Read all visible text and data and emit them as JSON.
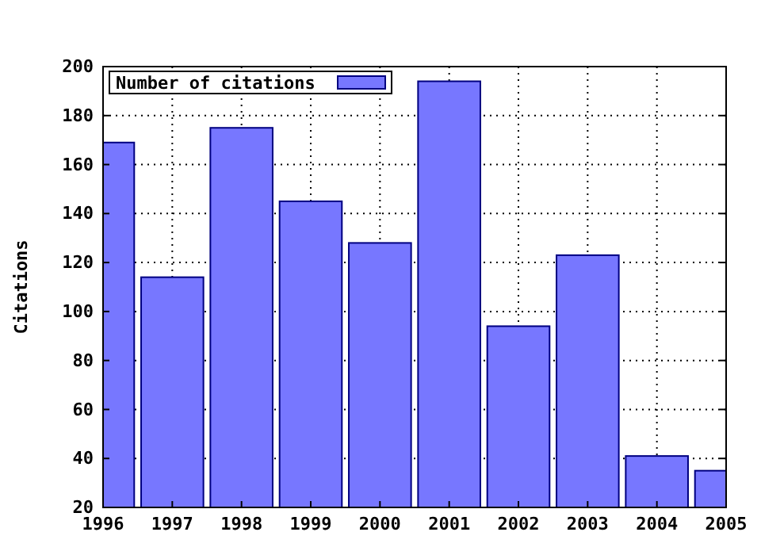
{
  "chart_data": {
    "type": "bar",
    "ylabel": "Citations",
    "x": [
      1996,
      1997,
      1998,
      1999,
      2000,
      2001,
      2002,
      2003,
      2004,
      2005
    ],
    "series": [
      {
        "name": "Number of citations",
        "color": "#7777ff",
        "values": [
          169,
          114,
          175,
          145,
          128,
          194,
          94,
          123,
          41,
          35
        ]
      }
    ],
    "xlim": [
      1996,
      2005
    ],
    "xticks": [
      1996,
      1997,
      1998,
      1999,
      2000,
      2001,
      2002,
      2003,
      2004,
      2005
    ],
    "ylim": [
      20,
      200
    ],
    "yticks": [
      20,
      40,
      60,
      80,
      100,
      120,
      140,
      160,
      180,
      200
    ],
    "grid": true,
    "legend": "top left"
  }
}
